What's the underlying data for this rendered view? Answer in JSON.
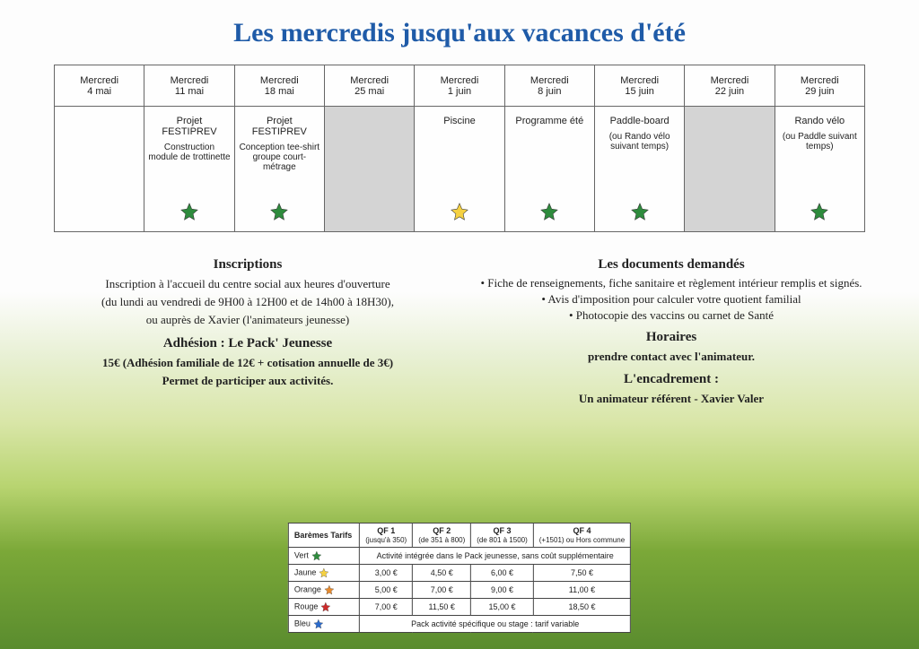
{
  "title": "Les mercredis jusqu'aux vacances d'été",
  "title_color": "#1f5ba8",
  "star_colors": {
    "vert": "#2e8b3d",
    "jaune": "#f5d142",
    "orange": "#e68a2e",
    "rouge": "#cc2b2b",
    "bleu": "#2b6bcc"
  },
  "schedule": {
    "columns": [
      {
        "day": "Mercredi",
        "date": "4 mai",
        "shade": false,
        "activity": null
      },
      {
        "day": "Mercredi",
        "date": "11 mai",
        "shade": false,
        "activity": {
          "title": "Projet FESTIPREV",
          "sub": "Construction module de trottinette",
          "star": "vert"
        }
      },
      {
        "day": "Mercredi",
        "date": "18 mai",
        "shade": false,
        "activity": {
          "title": "Projet FESTIPREV",
          "sub": "Conception tee-shirt groupe court-métrage",
          "star": "vert"
        }
      },
      {
        "day": "Mercredi",
        "date": "25 mai",
        "shade": true,
        "activity": null
      },
      {
        "day": "Mercredi",
        "date": "1 juin",
        "shade": false,
        "activity": {
          "title": "Piscine",
          "sub": "",
          "star": "jaune"
        }
      },
      {
        "day": "Mercredi",
        "date": "8 juin",
        "shade": false,
        "activity": {
          "title": "Programme été",
          "sub": "",
          "star": "vert"
        }
      },
      {
        "day": "Mercredi",
        "date": "15 juin",
        "shade": false,
        "activity": {
          "title": "Paddle-board",
          "sub": "",
          "note": "(ou Rando vélo suivant temps)",
          "star": "vert"
        }
      },
      {
        "day": "Mercredi",
        "date": "22 juin",
        "shade": true,
        "activity": null
      },
      {
        "day": "Mercredi",
        "date": "29 juin",
        "shade": false,
        "activity": {
          "title": "Rando vélo",
          "sub": "",
          "note": "(ou Paddle suivant temps)",
          "star": "vert"
        }
      }
    ]
  },
  "left": {
    "inscriptions_h": "Inscriptions",
    "inscriptions_1": "Inscription à l'accueil du centre social aux heures d'ouverture",
    "inscriptions_2": "(du lundi au vendredi de 9H00 à 12H00 et de 14h00 à 18H30),",
    "inscriptions_3": "ou auprès de Xavier (l'animateurs jeunesse)",
    "adhesion_h": "Adhésion : Le Pack' Jeunesse",
    "adhesion_1": "15€ (Adhésion familiale de 12€ + cotisation annuelle de 3€)",
    "adhesion_2": "Permet de participer aux activités."
  },
  "right": {
    "docs_h": "Les documents demandés",
    "docs": [
      "Fiche de renseignements, fiche sanitaire et règlement intérieur remplis et signés.",
      "Avis d'imposition pour calculer votre quotient familial",
      "Photocopie des vaccins ou carnet de Santé"
    ],
    "horaires_h": "Horaires",
    "horaires_1": "prendre contact avec l'animateur.",
    "encadrement_h": "L'encadrement :",
    "encadrement_1": "Un animateur référent - Xavier Valer"
  },
  "tarif": {
    "head_label": "Barèmes Tarifs",
    "cols": [
      {
        "h": "QF 1",
        "sub": "(jusqu'à 350)"
      },
      {
        "h": "QF 2",
        "sub": "(de 351 à 800)"
      },
      {
        "h": "QF 3",
        "sub": "(de 801 à 1500)"
      },
      {
        "h": "QF 4",
        "sub": "(+1501) ou Hors commune"
      }
    ],
    "rows": [
      {
        "label": "Vert",
        "star": "vert",
        "span_text": "Activité intégrée dans le Pack jeunesse, sans coût supplémentaire",
        "spanned": true
      },
      {
        "label": "Jaune",
        "star": "jaune",
        "cells": [
          "3,00 €",
          "4,50 €",
          "6,00 €",
          "7,50 €"
        ]
      },
      {
        "label": "Orange",
        "star": "orange",
        "cells": [
          "5,00 €",
          "7,00 €",
          "9,00 €",
          "11,00 €"
        ]
      },
      {
        "label": "Rouge",
        "star": "rouge",
        "cells": [
          "7,00 €",
          "11,50 €",
          "15,00 €",
          "18,50 €"
        ]
      },
      {
        "label": "Bleu",
        "star": "bleu",
        "span_text": "Pack activité spécifique ou stage : tarif variable",
        "spanned": true
      }
    ]
  }
}
